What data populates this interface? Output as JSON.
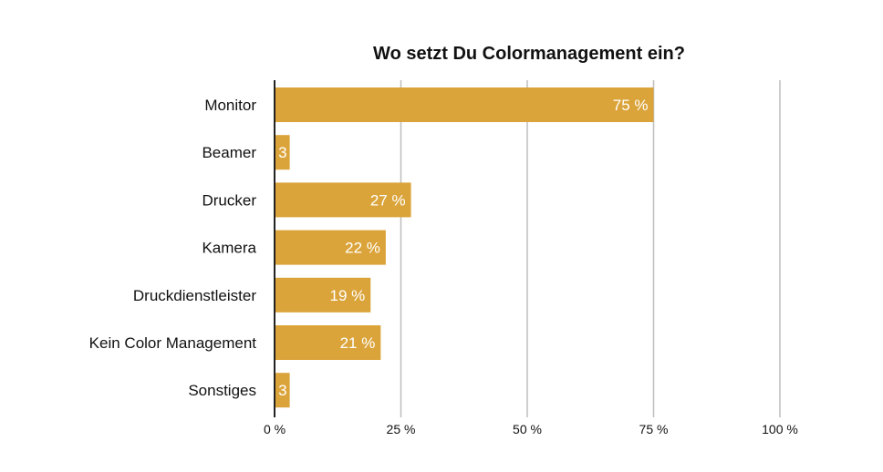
{
  "chart_data": {
    "type": "bar",
    "orientation": "horizontal",
    "title": "Wo setzt Du Colormanagement ein?",
    "xlabel": "",
    "ylabel": "",
    "categories": [
      "Monitor",
      "Beamer",
      "Drucker",
      "Kamera",
      "Druckdienstleister",
      "Kein Color Management",
      "Sonstiges"
    ],
    "values": [
      75,
      3,
      27,
      22,
      19,
      21,
      3
    ],
    "data_labels": [
      "75 %",
      "3",
      "27 %",
      "22 %",
      "19 %",
      "21 %",
      "3"
    ],
    "xlim": [
      0,
      100
    ],
    "x_ticks": [
      0,
      25,
      50,
      75,
      100
    ],
    "x_tick_labels": [
      "0 %",
      "25 %",
      "50 %",
      "75 %",
      "100 %"
    ],
    "grid": "vertical",
    "legend": "none",
    "bar_color": "#DBA43A",
    "grid_color": "#BDBDBD",
    "axis_color": "#222222"
  }
}
